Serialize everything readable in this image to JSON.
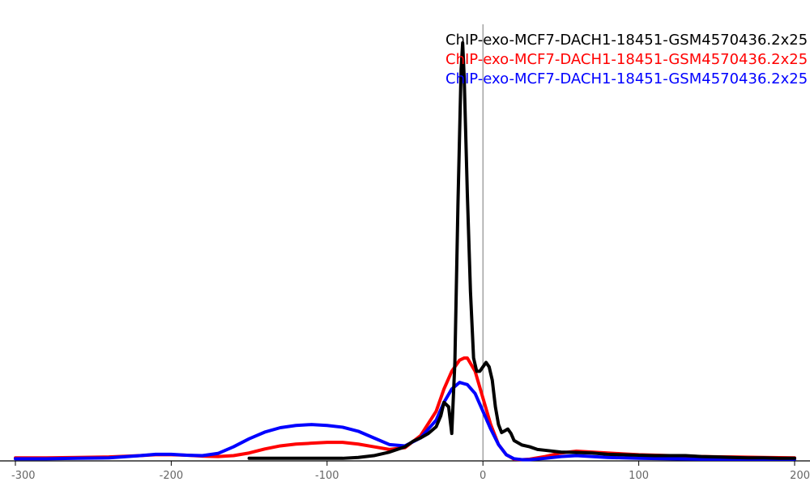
{
  "chart_data": {
    "type": "line",
    "title": "",
    "xlabel": "",
    "ylabel": "",
    "xlim": [
      -300,
      200
    ],
    "ylim": [
      0,
      1
    ],
    "grid": false,
    "legend_position": "top-right",
    "x_ticks": [
      -300,
      -200,
      -100,
      0,
      100,
      200
    ],
    "x_tick_labels": [
      "-300",
      "-200",
      "-100",
      "0",
      "100",
      "200"
    ],
    "reference_line_x": 0,
    "series": [
      {
        "name": "ChIP-exo-MCF7-DACH1-18451-GSM4570436.2x25",
        "color": "#000000",
        "x": [
          -150,
          -140,
          -120,
          -100,
          -90,
          -80,
          -70,
          -60,
          -50,
          -45,
          -40,
          -35,
          -30,
          -27,
          -25,
          -22,
          -20,
          -18,
          -16,
          -14,
          -13,
          -12,
          -10,
          -8,
          -6,
          -4,
          -2,
          0,
          2,
          4,
          6,
          8,
          10,
          12,
          14,
          16,
          18,
          20,
          25,
          30,
          35,
          40,
          50,
          60,
          70,
          80,
          90,
          100,
          110,
          120,
          130,
          140,
          150,
          160,
          170,
          180,
          190,
          200
        ],
        "y": [
          0.004,
          0.004,
          0.004,
          0.004,
          0.004,
          0.006,
          0.01,
          0.018,
          0.03,
          0.042,
          0.05,
          0.06,
          0.075,
          0.1,
          0.13,
          0.12,
          0.06,
          0.22,
          0.58,
          0.88,
          0.94,
          0.86,
          0.6,
          0.38,
          0.23,
          0.2,
          0.2,
          0.21,
          0.22,
          0.21,
          0.18,
          0.12,
          0.08,
          0.062,
          0.066,
          0.07,
          0.06,
          0.044,
          0.034,
          0.03,
          0.024,
          0.022,
          0.018,
          0.017,
          0.016,
          0.013,
          0.012,
          0.011,
          0.01,
          0.01,
          0.01,
          0.008,
          0.007,
          0.006,
          0.005,
          0.005,
          0.004,
          0.004
        ]
      },
      {
        "name": "ChIP-exo-MCF7-DACH1-18451-GSM4570436.2x25",
        "color": "#ff0000",
        "x": [
          -300,
          -280,
          -260,
          -240,
          -220,
          -210,
          -200,
          -190,
          -180,
          -170,
          -160,
          -150,
          -140,
          -130,
          -120,
          -110,
          -100,
          -90,
          -80,
          -70,
          -60,
          -50,
          -40,
          -30,
          -25,
          -20,
          -15,
          -12,
          -10,
          -5,
          0,
          5,
          10,
          15,
          20,
          25,
          30,
          40,
          50,
          60,
          70,
          80,
          90,
          100,
          120,
          140,
          160,
          180,
          200
        ],
        "y": [
          0.005,
          0.005,
          0.006,
          0.007,
          0.01,
          0.012,
          0.012,
          0.011,
          0.009,
          0.008,
          0.01,
          0.016,
          0.025,
          0.032,
          0.036,
          0.038,
          0.04,
          0.04,
          0.036,
          0.03,
          0.024,
          0.028,
          0.055,
          0.11,
          0.16,
          0.2,
          0.225,
          0.23,
          0.23,
          0.2,
          0.14,
          0.08,
          0.035,
          0.012,
          0.002,
          0.001,
          0.002,
          0.008,
          0.016,
          0.02,
          0.018,
          0.016,
          0.014,
          0.012,
          0.01,
          0.008,
          0.007,
          0.006,
          0.005
        ]
      },
      {
        "name": "ChIP-exo-MCF7-DACH1-18451-GSM4570436.2x25",
        "color": "#0000ff",
        "x": [
          -300,
          -280,
          -260,
          -240,
          -220,
          -210,
          -200,
          -190,
          -180,
          -170,
          -160,
          -150,
          -140,
          -130,
          -120,
          -110,
          -100,
          -90,
          -80,
          -70,
          -60,
          -50,
          -40,
          -30,
          -25,
          -20,
          -15,
          -12,
          -10,
          -5,
          0,
          5,
          10,
          15,
          20,
          25,
          30,
          40,
          50,
          60,
          70,
          80,
          90,
          100,
          120,
          140,
          160,
          180,
          200
        ],
        "y": [
          0.003,
          0.003,
          0.004,
          0.005,
          0.01,
          0.013,
          0.013,
          0.011,
          0.01,
          0.015,
          0.03,
          0.048,
          0.063,
          0.073,
          0.078,
          0.08,
          0.078,
          0.074,
          0.065,
          0.05,
          0.035,
          0.032,
          0.05,
          0.09,
          0.13,
          0.16,
          0.175,
          0.172,
          0.17,
          0.15,
          0.11,
          0.07,
          0.035,
          0.012,
          0.003,
          0.001,
          0.001,
          0.004,
          0.008,
          0.01,
          0.008,
          0.006,
          0.005,
          0.004,
          0.003,
          0.002,
          0.002,
          0.002,
          0.002
        ]
      }
    ]
  }
}
